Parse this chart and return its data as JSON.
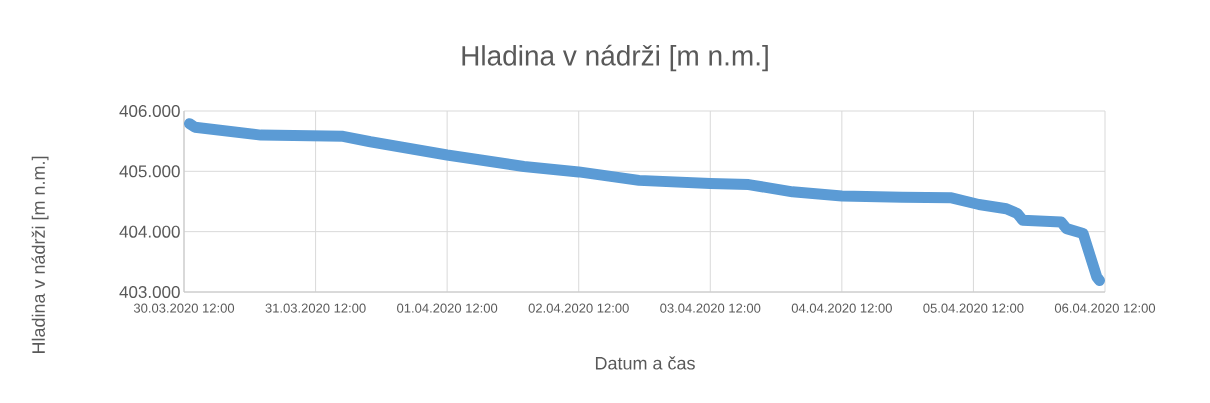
{
  "chart_data": {
    "type": "line",
    "title": "Hladina v nádrži [m n.m.]",
    "xlabel": "Datum a čas",
    "ylabel": "Hladina v nádrži [m n.m.]",
    "x": [
      "2020-03-30T13:00",
      "2020-03-30T14:00",
      "2020-03-31T02:00",
      "2020-03-31T17:00",
      "2020-03-31T22:00",
      "2020-04-01T12:00",
      "2020-04-02T02:00",
      "2020-04-02T12:00",
      "2020-04-02T23:00",
      "2020-04-03T12:00",
      "2020-04-03T19:00",
      "2020-04-04T03:00",
      "2020-04-04T12:00",
      "2020-04-04T23:00",
      "2020-04-05T08:00",
      "2020-04-05T13:00",
      "2020-04-05T18:00",
      "2020-04-05T20:00",
      "2020-04-05T21:00",
      "2020-04-06T04:00",
      "2020-04-06T05:00",
      "2020-04-06T08:00",
      "2020-04-06T10:30",
      "2020-04-06T11:00"
    ],
    "values": [
      405.79,
      405.73,
      405.6,
      405.58,
      405.49,
      405.27,
      405.08,
      404.99,
      404.85,
      404.8,
      404.78,
      404.66,
      404.59,
      404.57,
      404.56,
      404.45,
      404.38,
      404.3,
      404.19,
      404.16,
      404.05,
      403.97,
      403.25,
      403.19
    ],
    "color": "#5b9bd5",
    "line_style": "solid",
    "grid": true,
    "xlim": [
      "2020-03-30T12:00",
      "2020-04-06T12:00"
    ],
    "xticks": [
      {
        "value": "2020-03-30T12:00",
        "label": "30.03.2020 12:00"
      },
      {
        "value": "2020-03-31T12:00",
        "label": "31.03.2020 12:00"
      },
      {
        "value": "2020-04-01T12:00",
        "label": "01.04.2020 12:00"
      },
      {
        "value": "2020-04-02T12:00",
        "label": "02.04.2020 12:00"
      },
      {
        "value": "2020-04-03T12:00",
        "label": "03.04.2020 12:00"
      },
      {
        "value": "2020-04-04T12:00",
        "label": "04.04.2020 12:00"
      },
      {
        "value": "2020-04-05T12:00",
        "label": "05.04.2020 12:00"
      },
      {
        "value": "2020-04-06T12:00",
        "label": "06.04.2020 12:00"
      }
    ],
    "ylim": [
      403,
      406
    ],
    "yticks": [
      {
        "value": 403,
        "label": "403.000"
      },
      {
        "value": 404,
        "label": "404.000"
      },
      {
        "value": 405,
        "label": "405.000"
      },
      {
        "value": 406,
        "label": "406.000"
      }
    ]
  }
}
